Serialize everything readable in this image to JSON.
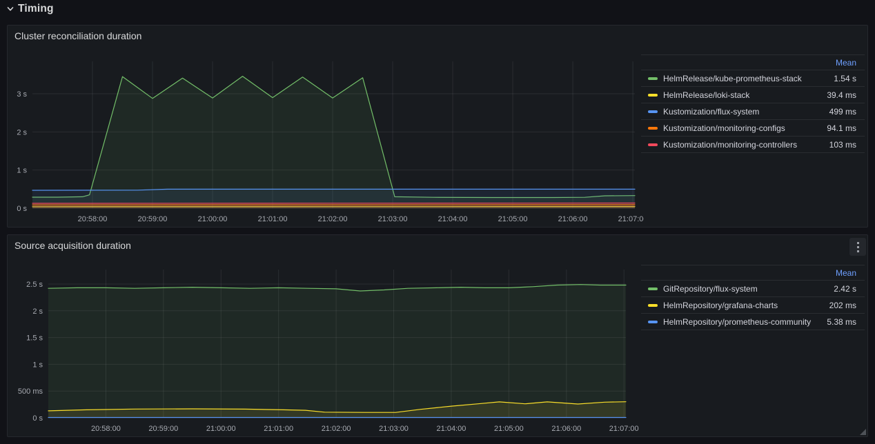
{
  "colors": {
    "page_bg": "#111217",
    "panel_bg": "#181b1f",
    "panel_border": "#26282e",
    "grid": "rgba(204,204,220,0.10)",
    "separator": "rgba(204,204,220,0.10)",
    "axis_text": "#a7aab1",
    "text": "#d8d9da",
    "link": "#6e9fff",
    "kebab_bg": "#24272c",
    "icon": "#9da0a7",
    "green": "#73BF69",
    "yellow": "#FADE2A",
    "blue": "#5794F2",
    "orange": "#FF780A",
    "red": "#F2495C"
  },
  "section": {
    "title": "Timing",
    "icon": "chevron-down-icon"
  },
  "panels": [
    {
      "title": "Cluster reconciliation duration",
      "legend": {
        "header": "Mean",
        "items": [
          {
            "label": "HelmRelease/kube-prometheus-stack",
            "value": "1.54 s",
            "color": "#73BF69"
          },
          {
            "label": "HelmRelease/loki-stack",
            "value": "39.4 ms",
            "color": "#FADE2A"
          },
          {
            "label": "Kustomization/flux-system",
            "value": "499 ms",
            "color": "#5794F2"
          },
          {
            "label": "Kustomization/monitoring-configs",
            "value": "94.1 ms",
            "color": "#FF780A"
          },
          {
            "label": "Kustomization/monitoring-controllers",
            "value": "103 ms",
            "color": "#F2495C"
          }
        ]
      }
    },
    {
      "title": "Source acquisition duration",
      "menu_icon": "kebab-menu-icon",
      "legend": {
        "header": "Mean",
        "items": [
          {
            "label": "GitRepository/flux-system",
            "value": "2.42 s",
            "color": "#73BF69"
          },
          {
            "label": "HelmRepository/grafana-charts",
            "value": "202 ms",
            "color": "#FADE2A"
          },
          {
            "label": "HelmRepository/prometheus-community",
            "value": "5.38 ms",
            "color": "#5794F2"
          }
        ]
      }
    }
  ],
  "chart_data": [
    {
      "type": "line",
      "title": "Cluster reconciliation duration",
      "x_start_time": "20:57:00",
      "x_end_time": "21:07:02",
      "x_unit": "seconds since x_start_time",
      "xlim": [
        0,
        602
      ],
      "ylim": [
        0,
        3.85
      ],
      "grid": true,
      "legend_position": "right-table",
      "legend_value_column": "Mean",
      "y_ticks": [
        {
          "v": 0,
          "label": "0 s"
        },
        {
          "v": 1,
          "label": "1 s"
        },
        {
          "v": 2,
          "label": "2 s"
        },
        {
          "v": 3,
          "label": "3 s"
        }
      ],
      "x_ticks": [
        {
          "t": 60,
          "label": "20:58:00"
        },
        {
          "t": 120,
          "label": "20:59:00"
        },
        {
          "t": 180,
          "label": "21:00:00"
        },
        {
          "t": 240,
          "label": "21:01:00"
        },
        {
          "t": 300,
          "label": "21:02:00"
        },
        {
          "t": 360,
          "label": "21:03:00"
        },
        {
          "t": 420,
          "label": "21:04:00"
        },
        {
          "t": 480,
          "label": "21:05:00"
        },
        {
          "t": 540,
          "label": "21:06:00"
        },
        {
          "t": 600,
          "label": "21:07:00"
        }
      ],
      "series": [
        {
          "name": "HelmRelease/kube-prometheus-stack",
          "color": "#73BF69",
          "mean": "1.54 s",
          "points": [
            [
              0,
              0.29
            ],
            [
              25,
              0.29
            ],
            [
              50,
              0.3
            ],
            [
              57,
              0.35
            ],
            [
              90,
              3.45
            ],
            [
              120,
              2.88
            ],
            [
              150,
              3.41
            ],
            [
              180,
              2.89
            ],
            [
              210,
              3.46
            ],
            [
              240,
              2.9
            ],
            [
              270,
              3.44
            ],
            [
              300,
              2.89
            ],
            [
              330,
              3.42
            ],
            [
              362,
              0.3
            ],
            [
              400,
              0.285
            ],
            [
              460,
              0.28
            ],
            [
              520,
              0.28
            ],
            [
              552,
              0.285
            ],
            [
              572,
              0.325
            ],
            [
              602,
              0.33
            ]
          ]
        },
        {
          "name": "HelmRelease/loki-stack",
          "color": "#FADE2A",
          "mean": "39.4 ms",
          "points": [
            [
              0,
              0.04
            ],
            [
              300,
              0.042
            ],
            [
              602,
              0.044
            ]
          ]
        },
        {
          "name": "Kustomization/flux-system",
          "color": "#5794F2",
          "mean": "499 ms",
          "points": [
            [
              0,
              0.47
            ],
            [
              105,
              0.473
            ],
            [
              135,
              0.498
            ],
            [
              300,
              0.499
            ],
            [
              602,
              0.499
            ]
          ]
        },
        {
          "name": "Kustomization/monitoring-configs",
          "color": "#FF780A",
          "mean": "94.1 ms",
          "points": [
            [
              0,
              0.086
            ],
            [
              300,
              0.088
            ],
            [
              602,
              0.09
            ]
          ]
        },
        {
          "name": "Kustomization/monitoring-controllers",
          "color": "#F2495C",
          "mean": "103 ms",
          "points": [
            [
              0,
              0.128
            ],
            [
              300,
              0.132
            ],
            [
              602,
              0.136
            ]
          ]
        }
      ]
    },
    {
      "type": "line",
      "title": "Source acquisition duration",
      "x_start_time": "20:57:00",
      "x_end_time": "21:07:02",
      "x_unit": "seconds since x_start_time",
      "xlim": [
        0,
        602
      ],
      "ylim": [
        0,
        2.77
      ],
      "grid": true,
      "legend_position": "right-table",
      "legend_value_column": "Mean",
      "y_ticks": [
        {
          "v": 0,
          "label": "0 s"
        },
        {
          "v": 0.5,
          "label": "500 ms"
        },
        {
          "v": 1,
          "label": "1 s"
        },
        {
          "v": 1.5,
          "label": "1.5 s"
        },
        {
          "v": 2,
          "label": "2 s"
        },
        {
          "v": 2.5,
          "label": "2.5 s"
        }
      ],
      "x_ticks": [
        {
          "t": 60,
          "label": "20:58:00"
        },
        {
          "t": 120,
          "label": "20:59:00"
        },
        {
          "t": 180,
          "label": "21:00:00"
        },
        {
          "t": 240,
          "label": "21:01:00"
        },
        {
          "t": 300,
          "label": "21:02:00"
        },
        {
          "t": 360,
          "label": "21:03:00"
        },
        {
          "t": 420,
          "label": "21:04:00"
        },
        {
          "t": 480,
          "label": "21:05:00"
        },
        {
          "t": 540,
          "label": "21:06:00"
        },
        {
          "t": 600,
          "label": "21:07:00"
        }
      ],
      "series": [
        {
          "name": "GitRepository/flux-system",
          "color": "#73BF69",
          "mean": "2.42 s",
          "points": [
            [
              0,
              2.42
            ],
            [
              30,
              2.43
            ],
            [
              60,
              2.43
            ],
            [
              90,
              2.42
            ],
            [
              120,
              2.43
            ],
            [
              150,
              2.44
            ],
            [
              180,
              2.43
            ],
            [
              210,
              2.42
            ],
            [
              240,
              2.43
            ],
            [
              270,
              2.42
            ],
            [
              300,
              2.41
            ],
            [
              325,
              2.37
            ],
            [
              350,
              2.39
            ],
            [
              375,
              2.42
            ],
            [
              405,
              2.43
            ],
            [
              430,
              2.44
            ],
            [
              455,
              2.43
            ],
            [
              480,
              2.43
            ],
            [
              505,
              2.45
            ],
            [
              530,
              2.48
            ],
            [
              555,
              2.49
            ],
            [
              575,
              2.48
            ],
            [
              602,
              2.48
            ]
          ]
        },
        {
          "name": "HelmRepository/grafana-charts",
          "color": "#FADE2A",
          "mean": "202 ms",
          "points": [
            [
              0,
              0.13
            ],
            [
              40,
              0.15
            ],
            [
              90,
              0.163
            ],
            [
              150,
              0.168
            ],
            [
              205,
              0.162
            ],
            [
              245,
              0.15
            ],
            [
              268,
              0.14
            ],
            [
              288,
              0.106
            ],
            [
              330,
              0.1
            ],
            [
              362,
              0.1
            ],
            [
              388,
              0.158
            ],
            [
              420,
              0.218
            ],
            [
              448,
              0.262
            ],
            [
              470,
              0.298
            ],
            [
              497,
              0.262
            ],
            [
              520,
              0.298
            ],
            [
              552,
              0.258
            ],
            [
              580,
              0.292
            ],
            [
              602,
              0.3
            ]
          ]
        },
        {
          "name": "HelmRepository/prometheus-community",
          "color": "#5794F2",
          "mean": "5.38 ms",
          "points": [
            [
              0,
              0.006
            ],
            [
              602,
              0.006
            ]
          ]
        }
      ]
    }
  ]
}
